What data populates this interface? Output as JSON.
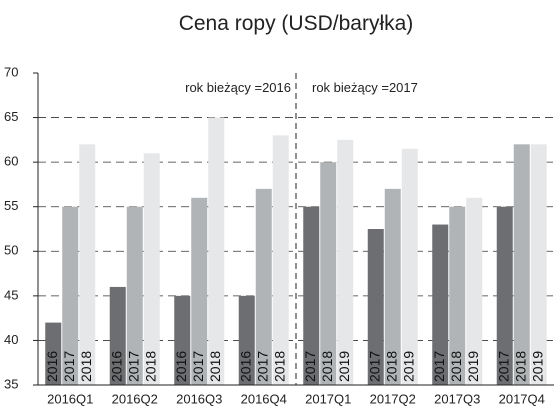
{
  "chart_data": {
    "type": "bar",
    "title": "Cena ropy (USD/baryłka)",
    "categories": [
      "2016Q1",
      "2016Q2",
      "2016Q3",
      "2016Q4",
      "2017Q1",
      "2017Q2",
      "2017Q3",
      "2017Q4"
    ],
    "series": [
      {
        "color": "#6d6e71",
        "values": [
          42,
          46,
          45,
          45,
          55,
          52.5,
          53,
          55
        ],
        "labels": [
          "2016",
          "2016",
          "2016",
          "2016",
          "2017",
          "2017",
          "2017",
          "2017"
        ]
      },
      {
        "color": "#b1b4b6",
        "values": [
          55,
          55,
          56,
          57,
          60,
          57,
          55,
          62
        ],
        "labels": [
          "2017",
          "2017",
          "2017",
          "2017",
          "2018",
          "2018",
          "2018",
          "2018"
        ]
      },
      {
        "color": "#e6e7e9",
        "values": [
          62,
          61,
          65,
          63,
          62.5,
          61.5,
          56,
          62
        ],
        "labels": [
          "2018",
          "2018",
          "2018",
          "2018",
          "2019",
          "2019",
          "2019",
          "2019"
        ]
      }
    ],
    "annotations": [
      "rok bieżący =2016",
      "rok bieżący =2017"
    ],
    "ylim": [
      35,
      70
    ],
    "yticks": [
      35,
      40,
      45,
      50,
      55,
      60,
      65,
      70
    ],
    "grid": true
  }
}
